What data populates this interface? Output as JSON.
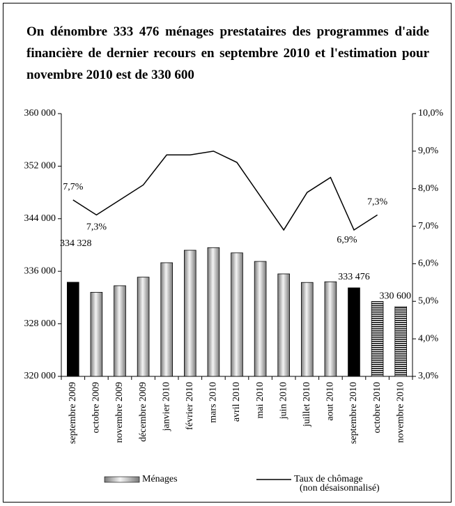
{
  "chart_data": {
    "type": "bar-line",
    "title": "On dénombre 333 476 ménages prestataires des programmes d'aide financière de dernier recours en septembre 2010 et l'estimation pour novembre 2010 est de 330 600",
    "categories": [
      "septembre 2009",
      "octobre 2009",
      "novembre 2009",
      "décembre 2009",
      "janvier 2010",
      "février 2010",
      "mars 2010",
      "avril 2010",
      "mai 2010",
      "juin 2010",
      "juillet 2010",
      "aout 2010",
      "septembre 2010",
      "octobre 2010",
      "novembre 2010"
    ],
    "series": [
      {
        "name": "Ménages",
        "type": "bar",
        "color": "#b8b8b8",
        "values": [
          334328,
          332800,
          333800,
          335100,
          337300,
          339200,
          339600,
          338800,
          337500,
          335600,
          334300,
          334400,
          333476,
          331400,
          330600
        ],
        "value_labels": [
          "334 328",
          null,
          null,
          null,
          null,
          null,
          null,
          null,
          null,
          null,
          null,
          null,
          "333 476",
          null,
          "330 600"
        ],
        "point_styles": [
          "solid",
          "gradient",
          "gradient",
          "gradient",
          "gradient",
          "gradient",
          "gradient",
          "gradient",
          "gradient",
          "gradient",
          "gradient",
          "gradient",
          "solid",
          "stripes",
          "stripes"
        ]
      },
      {
        "name": "Taux de chômage (non désaisonnalisé)",
        "type": "line",
        "axis": "y2",
        "color": "#000000",
        "values": [
          7.7,
          7.3,
          7.7,
          8.1,
          8.9,
          8.9,
          9.0,
          8.7,
          7.8,
          6.9,
          7.9,
          8.3,
          6.9,
          7.3,
          null
        ],
        "value_labels": [
          "7,7%",
          "7,3%",
          null,
          null,
          null,
          null,
          null,
          null,
          null,
          null,
          null,
          null,
          "6,9%",
          "7,3%",
          null
        ]
      }
    ],
    "ylim": [
      320000,
      360000
    ],
    "yticks": [
      {
        "value": 320000,
        "label": "320 000"
      },
      {
        "value": 328000,
        "label": "328 000"
      },
      {
        "value": 336000,
        "label": "336 000"
      },
      {
        "value": 344000,
        "label": "344 000"
      },
      {
        "value": 352000,
        "label": "352 000"
      },
      {
        "value": 360000,
        "label": "360 000"
      }
    ],
    "y2lim": [
      3,
      10
    ],
    "y2ticks": [
      {
        "value": 3,
        "label": "3,0%"
      },
      {
        "value": 4,
        "label": "4,0%"
      },
      {
        "value": 5,
        "label": "5,0%"
      },
      {
        "value": 6,
        "label": "6,0%"
      },
      {
        "value": 7,
        "label": "7,0%"
      },
      {
        "value": 8,
        "label": "8,0%"
      },
      {
        "value": 9,
        "label": "9,0%"
      },
      {
        "value": 10,
        "label": "10,0%"
      }
    ],
    "grid": false
  }
}
